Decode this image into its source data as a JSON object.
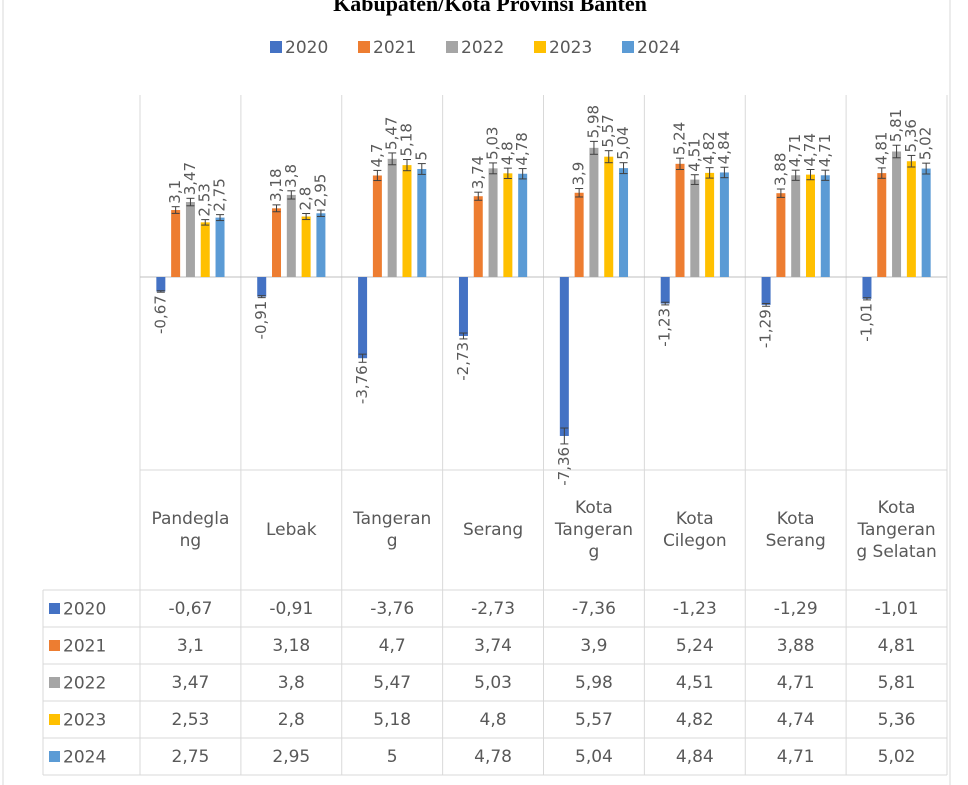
{
  "chart_data": {
    "type": "bar",
    "title": "Kabupaten/Kota Provinsi Banten",
    "categories": [
      "Pandeglang",
      "Lebak",
      "Tangerang",
      "Serang",
      "Kota Tangerang",
      "Kota Cilegon",
      "Kota Serang",
      "Kota Tangerang Selatan"
    ],
    "error_percent": 5,
    "series": [
      {
        "name": "2020",
        "color": "#4472c4",
        "values": [
          -0.67,
          -0.91,
          -3.76,
          -2.73,
          -7.36,
          -1.23,
          -1.29,
          -1.01
        ],
        "value_labels": [
          "-0,67",
          "-0,91",
          "-3,76",
          "-2,73",
          "-7,36",
          "-1,23",
          "-1,29",
          "-1,01"
        ]
      },
      {
        "name": "2021",
        "color": "#ed7d31",
        "values": [
          3.1,
          3.18,
          4.7,
          3.74,
          3.9,
          5.24,
          3.88,
          4.81
        ],
        "value_labels": [
          "3,1",
          "3,18",
          "4,7",
          "3,74",
          "3,9",
          "5,24",
          "3,88",
          "4,81"
        ]
      },
      {
        "name": "2022",
        "color": "#a5a5a5",
        "values": [
          3.47,
          3.8,
          5.47,
          5.03,
          5.98,
          4.51,
          4.71,
          5.81
        ],
        "value_labels": [
          "3,47",
          "3,8",
          "5,47",
          "5,03",
          "5,98",
          "4,51",
          "4,71",
          "5,81"
        ]
      },
      {
        "name": "2023",
        "color": "#ffc000",
        "values": [
          2.53,
          2.8,
          5.18,
          4.8,
          5.57,
          4.82,
          4.74,
          5.36
        ],
        "value_labels": [
          "2,53",
          "2,8",
          "5,18",
          "4,8",
          "5,57",
          "4,82",
          "4,74",
          "5,36"
        ]
      },
      {
        "name": "2024",
        "color": "#5b9bd5",
        "values": [
          2.75,
          2.95,
          5,
          4.78,
          5.04,
          4.84,
          4.71,
          5.02
        ],
        "value_labels": [
          "2,75",
          "2,95",
          "5",
          "4,78",
          "5,04",
          "4,84",
          "4,71",
          "5,02"
        ]
      }
    ],
    "legend": "top",
    "data_table": true
  }
}
